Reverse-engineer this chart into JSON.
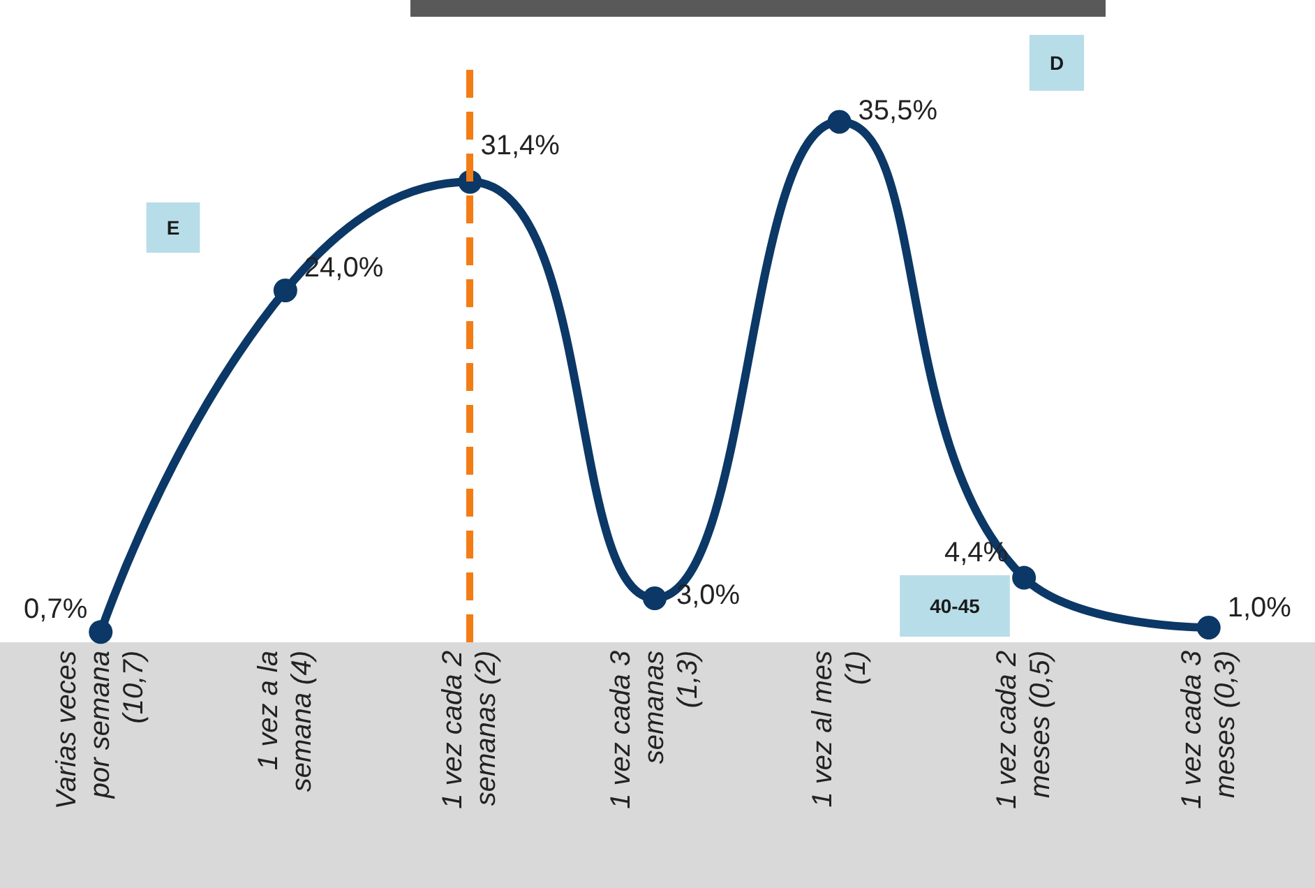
{
  "chart_data": {
    "type": "line",
    "categories": [
      "Varias veces\npor semana\n(10,7)",
      "1 vez a la\nsemana (4)",
      "1 vez cada 2\nsemanas (2)",
      "1 vez cada 3\nsemanas\n(1,3)",
      "1 vez al mes\n(1)",
      "1 vez cada 2\nmeses (0,5)",
      "1 vez cada 3\nmeses (0,3)"
    ],
    "series": [
      {
        "color": "#0b3866",
        "values": [
          0.7,
          24.0,
          31.4,
          3.0,
          35.5,
          4.4,
          1.0
        ],
        "value_labels": [
          "0,7%",
          "24,0%",
          "31,4%",
          "3,0%",
          "35,5%",
          "4,4%",
          "1,0%"
        ]
      }
    ],
    "annotations": [
      "E",
      "D",
      "40-45"
    ],
    "ref_lines": [
      {
        "axis": "x",
        "value": "1 vez cada 2\nsemanas (2)",
        "color": "#f47c14",
        "line_style": "dashed"
      }
    ],
    "marker": "circle",
    "line_style": "solid",
    "grid": false
  }
}
